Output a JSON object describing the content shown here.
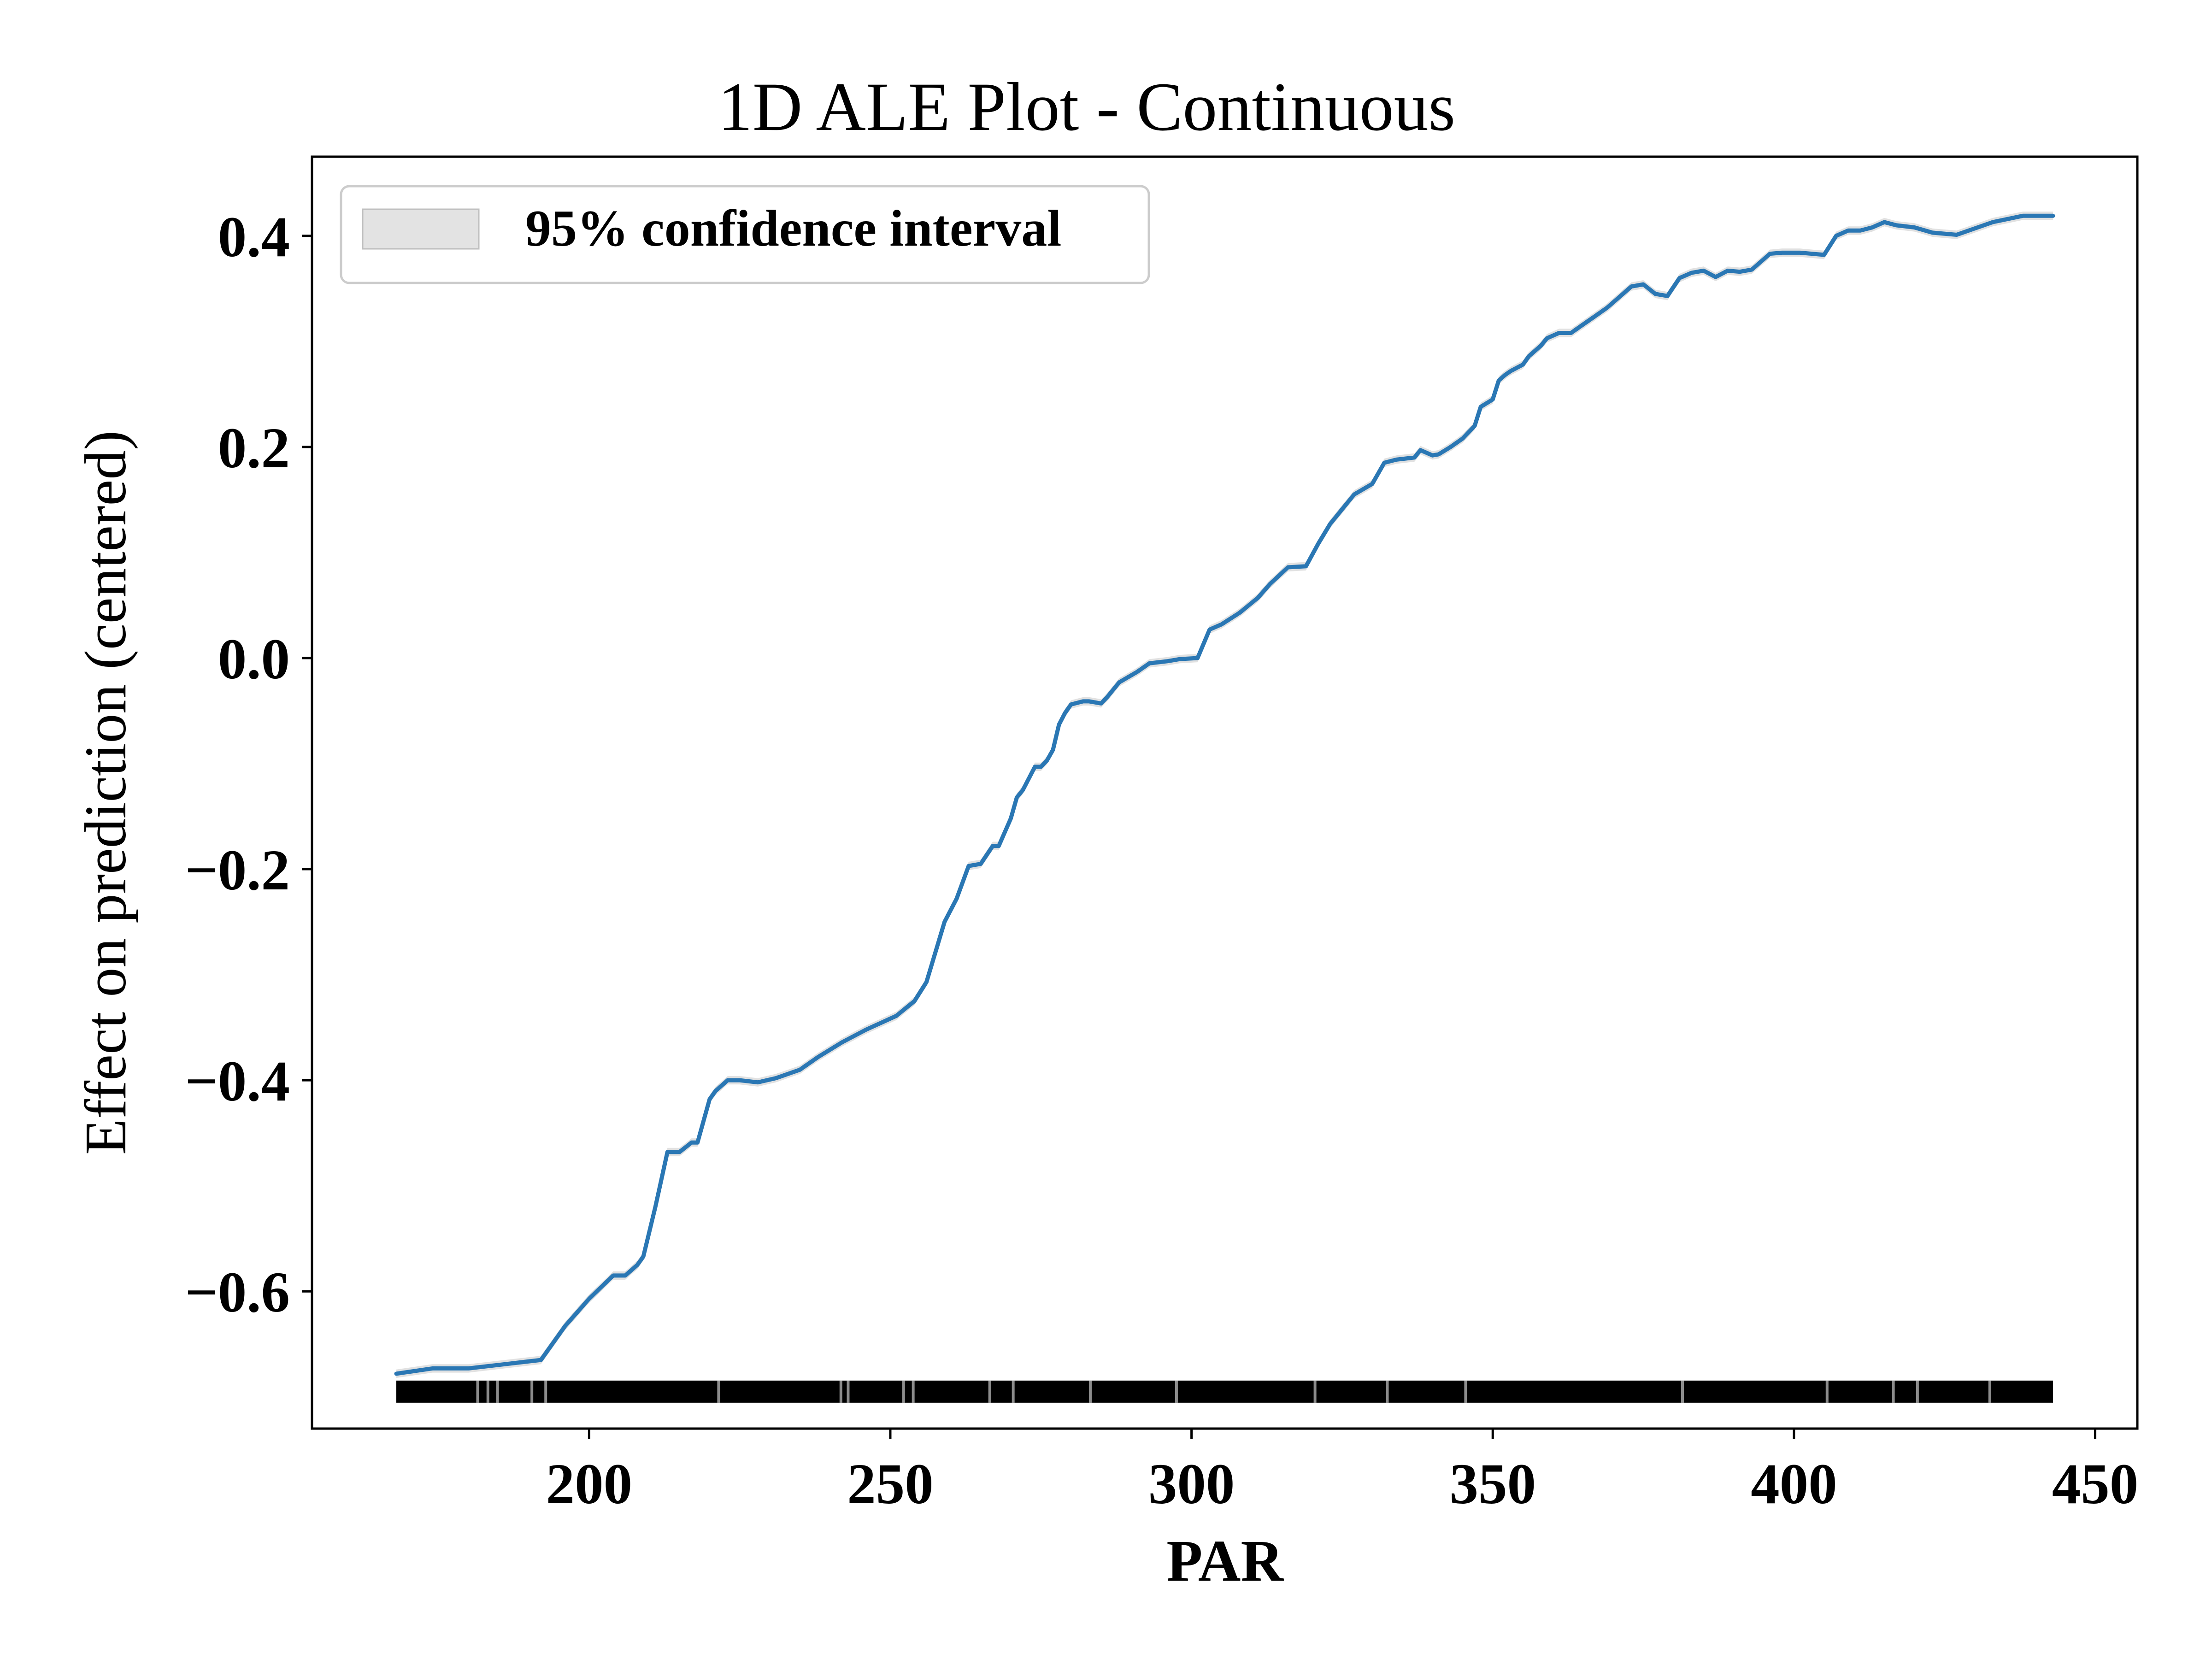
{
  "chart_data": {
    "type": "line",
    "title": "1D ALE Plot - Continuous",
    "xlabel": "PAR",
    "ylabel": "Effect on prediction (centered)",
    "xlim": [
      154,
      457
    ],
    "ylim": [
      -0.73,
      0.475
    ],
    "x_ticks": [
      200,
      250,
      300,
      350,
      400,
      450
    ],
    "x_tick_labels": [
      "200",
      "250",
      "300",
      "350",
      "400",
      "450"
    ],
    "y_ticks": [
      -0.6,
      -0.4,
      -0.2,
      0.0,
      0.2,
      0.4
    ],
    "y_tick_labels": [
      "−0.6",
      "−0.4",
      "−0.2",
      "0.0",
      "0.2",
      "0.4"
    ],
    "grid": false,
    "legend": {
      "placement": "top-left",
      "entries": [
        "95% confidence interval"
      ]
    },
    "colors": {
      "line": "#2a77b4",
      "ci_fill": "#d9d9d9",
      "rug": "#000000"
    },
    "series": [
      {
        "x": [
          168,
          174,
          180,
          186,
          192,
          196,
          200,
          204,
          206,
          208,
          209,
          211,
          213,
          215,
          217,
          218,
          220,
          221,
          223,
          225,
          228,
          231,
          235,
          238,
          242,
          246,
          251,
          254,
          256,
          259,
          261,
          263,
          265,
          267,
          268,
          270,
          271,
          272,
          274,
          275,
          276,
          277,
          278,
          279,
          280,
          282,
          283,
          285,
          286,
          288,
          291,
          293,
          296,
          298,
          301,
          303,
          305,
          308,
          311,
          313,
          316,
          319,
          321,
          323,
          325,
          327,
          330,
          332,
          334,
          337,
          338,
          340,
          341,
          343,
          345,
          347,
          348,
          350,
          351,
          352,
          353,
          355,
          356,
          358,
          359,
          361,
          363,
          364,
          366,
          367,
          369,
          371,
          373,
          375,
          377,
          379,
          381,
          383,
          385,
          387,
          389,
          391,
          393,
          396,
          398,
          401,
          403,
          405,
          407,
          409,
          411,
          413,
          415,
          417,
          420,
          423,
          427,
          433,
          438,
          443
        ],
        "y": [
          -0.678,
          -0.673,
          -0.673,
          -0.669,
          -0.665,
          -0.633,
          -0.607,
          -0.585,
          -0.585,
          -0.575,
          -0.567,
          -0.52,
          -0.468,
          -0.468,
          -0.459,
          -0.459,
          -0.418,
          -0.41,
          -0.4,
          -0.4,
          -0.402,
          -0.398,
          -0.39,
          -0.378,
          -0.364,
          -0.352,
          -0.339,
          -0.325,
          -0.307,
          -0.25,
          -0.228,
          -0.197,
          -0.195,
          -0.178,
          -0.178,
          -0.152,
          -0.132,
          -0.125,
          -0.103,
          -0.103,
          -0.097,
          -0.087,
          -0.063,
          -0.052,
          -0.044,
          -0.041,
          -0.041,
          -0.043,
          -0.037,
          -0.023,
          -0.013,
          -0.005,
          -0.003,
          -0.001,
          0.0,
          0.027,
          0.032,
          0.043,
          0.057,
          0.07,
          0.086,
          0.087,
          0.108,
          0.127,
          0.141,
          0.155,
          0.165,
          0.185,
          0.188,
          0.19,
          0.197,
          0.192,
          0.193,
          0.2,
          0.208,
          0.22,
          0.238,
          0.245,
          0.263,
          0.268,
          0.272,
          0.278,
          0.286,
          0.296,
          0.303,
          0.308,
          0.308,
          0.312,
          0.32,
          0.324,
          0.332,
          0.342,
          0.352,
          0.354,
          0.345,
          0.343,
          0.36,
          0.365,
          0.367,
          0.361,
          0.367,
          0.366,
          0.368,
          0.383,
          0.384,
          0.384,
          0.383,
          0.382,
          0.4,
          0.405,
          0.405,
          0.408,
          0.413,
          0.41,
          0.408,
          0.403,
          0.401,
          0.413,
          0.419,
          0.419
        ]
      }
    ],
    "rug": {
      "y": -0.695,
      "x_min": 168,
      "x_max": 443,
      "gap_x": [
        181.5,
        183.2,
        184.8,
        190.5,
        192.8,
        221.5,
        241.8,
        243,
        252.2,
        253.8,
        266.5,
        270.4,
        283.2,
        297.5,
        320.5,
        332.5,
        345.5,
        381.5,
        405.5,
        416.5,
        420.5,
        432.5
      ]
    }
  }
}
